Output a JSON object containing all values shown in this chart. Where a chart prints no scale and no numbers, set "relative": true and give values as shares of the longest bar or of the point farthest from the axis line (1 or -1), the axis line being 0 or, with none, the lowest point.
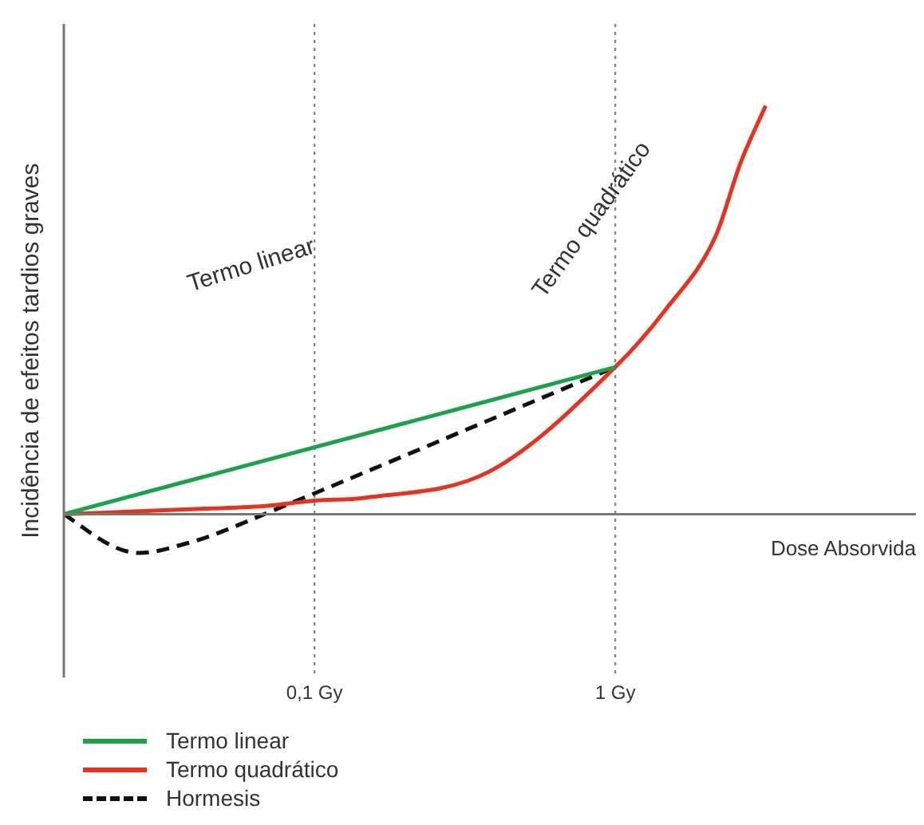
{
  "chart_data": {
    "type": "line",
    "relative": true,
    "xlabel": "Dose Absorvida",
    "ylabel": "Incidência de efeitos tardios graves",
    "categories": [
      null,
      null,
      null,
      null,
      null,
      null,
      null,
      null,
      null,
      null,
      "0,1 Gy",
      null,
      null,
      null,
      null,
      null,
      null,
      null,
      null,
      null,
      null,
      null,
      "1 Gy",
      null,
      null,
      null,
      null,
      null,
      null,
      null,
      null,
      null,
      null,
      null,
      null
    ],
    "series": [
      {
        "name": "Termo linear",
        "color": "#1aa34a",
        "values": [
          0,
          null,
          null,
          null,
          null,
          null,
          null,
          null,
          null,
          null,
          null,
          null,
          null,
          null,
          null,
          null,
          null,
          null,
          null,
          null,
          null,
          null,
          0.36,
          null,
          null,
          null,
          null,
          null,
          null,
          null,
          null,
          null,
          null,
          null,
          null
        ],
        "line_style": "solid"
      },
      {
        "name": "Termo quadrático",
        "color": "#e8321e",
        "values": [
          0,
          null,
          null,
          null,
          null,
          0.012,
          null,
          null,
          0.02,
          null,
          0.033,
          null,
          0.04,
          null,
          null,
          null,
          null,
          0.105,
          null,
          null,
          null,
          null,
          0.36,
          null,
          0.5,
          null,
          0.68,
          0.86,
          1,
          null,
          null,
          null,
          null,
          null,
          null
        ],
        "line_style": "solid"
      },
      {
        "name": "Hormesis",
        "color": "#111111",
        "values": [
          0,
          null,
          -0.08,
          -0.095,
          null,
          -0.07,
          -0.05,
          null,
          0,
          null,
          null,
          null,
          null,
          null,
          null,
          null,
          null,
          null,
          null,
          null,
          null,
          null,
          0.36,
          null,
          null,
          null,
          null,
          null,
          null,
          null,
          null,
          null,
          null,
          null,
          null
        ],
        "line_style": "dashed"
      }
    ],
    "ref_lines": [
      {
        "axis": "x",
        "value": "0,1 Gy",
        "color": "#888888",
        "line_style": "dotted"
      },
      {
        "axis": "x",
        "value": "1 Gy",
        "color": "#888888",
        "line_style": "dotted"
      }
    ],
    "annotations": [
      "Termo linear",
      "Termo quadrático"
    ],
    "legend": "bottom left",
    "grid": false
  }
}
